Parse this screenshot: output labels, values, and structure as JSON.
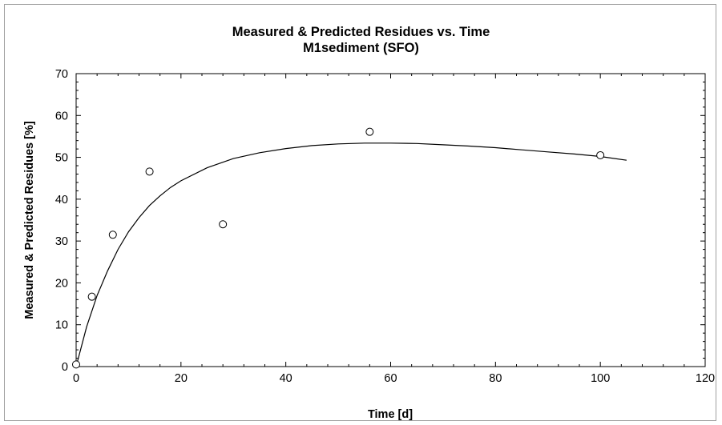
{
  "chart_data": {
    "type": "scatter",
    "title": "Measured & Predicted Residues vs. Time",
    "subtitle": "M1sediment (SFO)",
    "xlabel": "Time [d]",
    "ylabel": "Measured & Predicted Residues [%]",
    "xlim": [
      0,
      120
    ],
    "ylim": [
      0,
      70
    ],
    "xticks": [
      0,
      20,
      40,
      60,
      80,
      100,
      120
    ],
    "yticks": [
      0,
      10,
      20,
      30,
      40,
      50,
      60,
      70
    ],
    "grid": false,
    "legend": "none",
    "series": [
      {
        "kind": "points",
        "marker": "open-circle",
        "x": [
          0,
          3,
          7,
          14,
          28,
          56,
          100
        ],
        "y": [
          0.5,
          16.7,
          31.5,
          46.6,
          34.0,
          56.1,
          50.5
        ]
      },
      {
        "kind": "line",
        "x": [
          0,
          2,
          4,
          6,
          8,
          10,
          12,
          14,
          16,
          18,
          20,
          25,
          30,
          35,
          40,
          45,
          50,
          55,
          60,
          65,
          70,
          75,
          80,
          85,
          90,
          95,
          100,
          105
        ],
        "y": [
          0,
          9.5,
          17.0,
          22.9,
          28.0,
          32.2,
          35.6,
          38.5,
          40.8,
          42.8,
          44.4,
          47.5,
          49.7,
          51.1,
          52.1,
          52.8,
          53.2,
          53.4,
          53.4,
          53.3,
          53.0,
          52.7,
          52.3,
          51.8,
          51.3,
          50.8,
          50.2,
          49.3
        ]
      }
    ],
    "colors": {
      "line": "#000000",
      "marker": "#000000",
      "frame": "#a0a0a0"
    }
  }
}
